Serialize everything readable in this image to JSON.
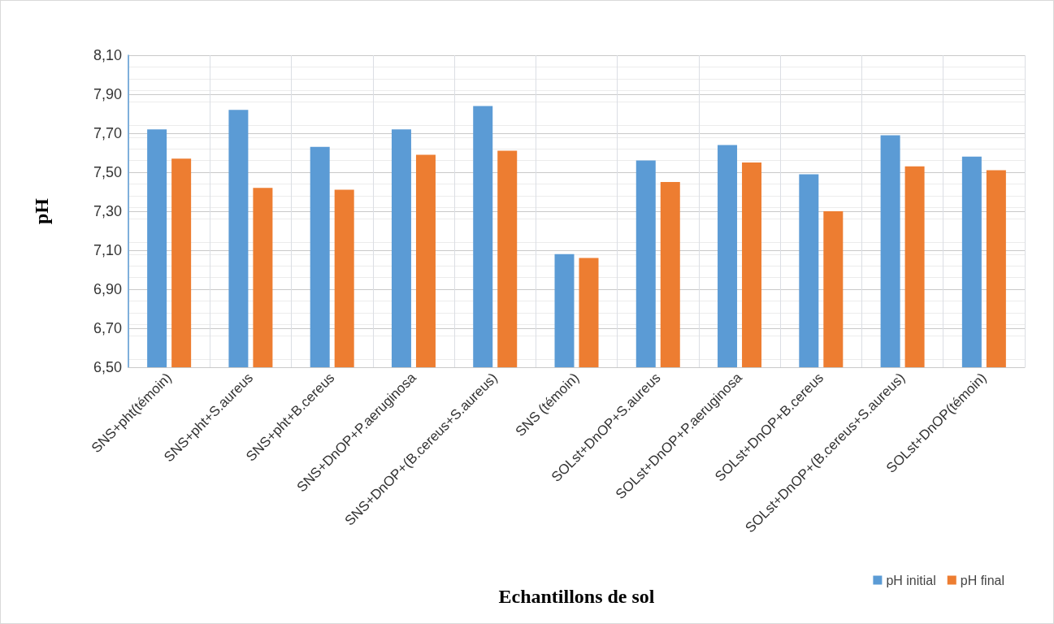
{
  "chart_data": {
    "type": "bar",
    "xlabel": "Echantillons de sol",
    "ylabel": "pH",
    "categories": [
      "SNS+pht(témoin)",
      "SNS+pht+S.aureus",
      "SNS+pht+B.cereus",
      "SNS+DnOP+P.aeruginosa",
      "SNS+DnOP+(B.cereus+S.aureus)",
      "SNS (témoin)",
      "SOLst+DnOP+S.aureus",
      "SOLst+DnOP+P.aeruginosa",
      "SOLst+DnOP+B.cereus",
      "SOLst+DnOP+(B.cereus+S.aureus)",
      "SOLst+DnOP(témoin)"
    ],
    "series": [
      {
        "name": "pH initial",
        "color": "#5b9bd5",
        "values": [
          7.72,
          7.82,
          7.63,
          7.72,
          7.84,
          7.08,
          7.56,
          7.64,
          7.49,
          7.69,
          7.58
        ]
      },
      {
        "name": "pH final",
        "color": "#ed7d31",
        "values": [
          7.57,
          7.42,
          7.41,
          7.59,
          7.61,
          7.06,
          7.45,
          7.55,
          7.3,
          7.53,
          7.51
        ]
      }
    ],
    "ylim": [
      6.5,
      8.1
    ],
    "yticks": [
      {
        "value": 6.5,
        "label": "6,50"
      },
      {
        "value": 6.7,
        "label": "6,70"
      },
      {
        "value": 6.9,
        "label": "6,90"
      },
      {
        "value": 7.1,
        "label": "7,10"
      },
      {
        "value": 7.3,
        "label": "7,30"
      },
      {
        "value": 7.5,
        "label": "7,50"
      },
      {
        "value": 7.7,
        "label": "7,70"
      },
      {
        "value": 7.9,
        "label": "7,90"
      },
      {
        "value": 8.1,
        "label": "8,10"
      }
    ],
    "grid": true,
    "legend": "bottom right"
  }
}
